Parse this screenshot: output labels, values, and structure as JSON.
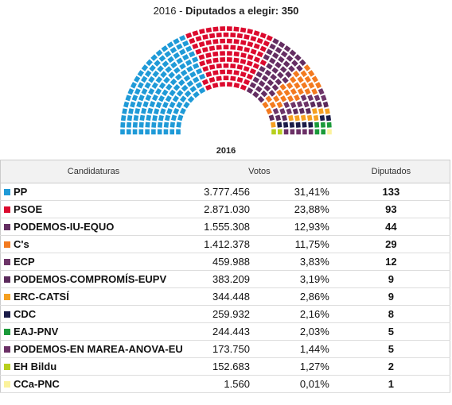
{
  "chart_data": {
    "type": "parliament",
    "title_prefix": "2016 -",
    "title_label": "Diputados a elegir:",
    "total": 350,
    "parties": [
      {
        "name": "PP",
        "color": "#1f9ad7",
        "votes": "3.777.456",
        "percent": "31,41%",
        "seats": 133
      },
      {
        "name": "PSOE",
        "color": "#dc0a2e",
        "votes": "2.871.030",
        "percent": "23,88%",
        "seats": 93
      },
      {
        "name": "PODEMOS-IU-EQUO",
        "color": "#642e62",
        "votes": "1.555.308",
        "percent": "12,93%",
        "seats": 44
      },
      {
        "name": "C's",
        "color": "#f37a1f",
        "votes": "1.412.378",
        "percent": "11,75%",
        "seats": 29
      },
      {
        "name": "ECP",
        "color": "#6d3468",
        "votes": "459.988",
        "percent": "3,83%",
        "seats": 12
      },
      {
        "name": "PODEMOS-COMPROMÍS-EUPV",
        "color": "#5b2a5c",
        "votes": "383.209",
        "percent": "3,19%",
        "seats": 9
      },
      {
        "name": "ERC-CATSÍ",
        "color": "#f5a021",
        "votes": "344.448",
        "percent": "2,86%",
        "seats": 9
      },
      {
        "name": "CDC",
        "color": "#1b1c48",
        "votes": "259.932",
        "percent": "2,16%",
        "seats": 8
      },
      {
        "name": "EAJ-PNV",
        "color": "#1b9a3a",
        "votes": "244.443",
        "percent": "2,03%",
        "seats": 5
      },
      {
        "name": "PODEMOS-EN MAREA-ANOVA-EU",
        "color": "#6b3066",
        "votes": "173.750",
        "percent": "1,44%",
        "seats": 5
      },
      {
        "name": "EH Bildu",
        "color": "#b7cf1d",
        "votes": "152.683",
        "percent": "1,27%",
        "seats": 2
      },
      {
        "name": "CCa-PNC",
        "color": "#fbf29c",
        "votes": "1.560",
        "percent": "0,01%",
        "seats": 1
      }
    ]
  },
  "table": {
    "year": "2016",
    "columns": [
      "Candidaturas",
      "Votos",
      "Diputados"
    ]
  }
}
